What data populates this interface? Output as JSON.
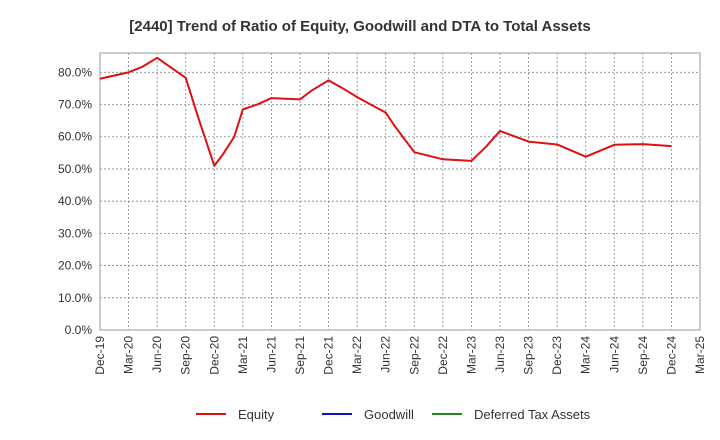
{
  "chart_data": {
    "type": "line",
    "title": "[2440]  Trend of Ratio of Equity, Goodwill and DTA to Total Assets",
    "xlabel": "",
    "ylabel": "",
    "ylim": [
      0,
      86
    ],
    "y_ticks": [
      0,
      10,
      20,
      30,
      40,
      50,
      60,
      70,
      80
    ],
    "y_tick_labels": [
      "0.0%",
      "10.0%",
      "20.0%",
      "30.0%",
      "40.0%",
      "50.0%",
      "60.0%",
      "70.0%",
      "80.0%"
    ],
    "x_tick_labels": [
      "Dec-19",
      "Mar-20",
      "Jun-20",
      "Sep-20",
      "Dec-20",
      "Mar-21",
      "Jun-21",
      "Sep-21",
      "Dec-21",
      "Mar-22",
      "Jun-22",
      "Sep-22",
      "Dec-22",
      "Mar-23",
      "Jun-23",
      "Sep-23",
      "Dec-23",
      "Mar-24",
      "Jun-24",
      "Sep-24",
      "Dec-24",
      "Mar-25"
    ],
    "grid": true,
    "series": [
      {
        "name": "Equity",
        "color": "#dd1111",
        "points": [
          [
            0,
            78.0
          ],
          [
            1,
            80.0
          ],
          [
            1.5,
            81.8
          ],
          [
            2,
            84.5
          ],
          [
            3,
            78.3
          ],
          [
            3.4,
            67.0
          ],
          [
            3.7,
            59.0
          ],
          [
            4,
            51.0
          ],
          [
            4.3,
            54.5
          ],
          [
            4.7,
            60.0
          ],
          [
            5,
            68.5
          ],
          [
            5.5,
            70.0
          ],
          [
            6,
            72.0
          ],
          [
            7,
            71.6
          ],
          [
            7.4,
            74.3
          ],
          [
            8,
            77.5
          ],
          [
            8.5,
            75.0
          ],
          [
            9,
            72.3
          ],
          [
            10,
            67.5
          ],
          [
            10.3,
            63.5
          ],
          [
            11,
            55.2
          ],
          [
            12,
            53.0
          ],
          [
            13,
            52.5
          ],
          [
            13.5,
            56.8
          ],
          [
            14,
            61.8
          ],
          [
            15,
            58.5
          ],
          [
            16,
            57.6
          ],
          [
            17,
            53.8
          ],
          [
            18,
            57.5
          ],
          [
            19,
            57.7
          ],
          [
            20,
            57.1
          ]
        ]
      },
      {
        "name": "Goodwill",
        "color": "#1111cc",
        "points": []
      },
      {
        "name": "Deferred Tax Assets",
        "color": "#228822",
        "points": []
      }
    ],
    "legend_position": "bottom-center"
  }
}
